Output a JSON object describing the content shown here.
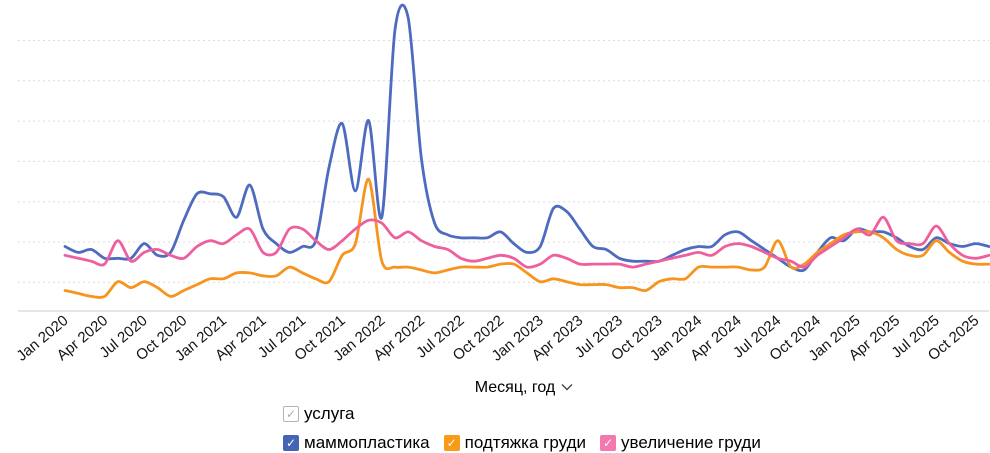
{
  "chart": {
    "x_axis_title": "Месяц, год",
    "background": "#ffffff",
    "gridline_color": "#dcdcdc",
    "axis_line_color": "#cccccc",
    "tick_label_color": "#141414"
  },
  "legend": {
    "filter": {
      "label": "услуга",
      "checked": true,
      "check_color": "#a6abb3",
      "border_color": "#b3b3b3"
    },
    "items": [
      {
        "label": "маммопластика",
        "checked": true,
        "color": "#4365b4"
      },
      {
        "label": "подтяжка груди",
        "checked": true,
        "color": "#f89b17"
      },
      {
        "label": "увеличение груди",
        "checked": true,
        "color": "#f478b0"
      }
    ]
  },
  "chart_data": {
    "type": "line",
    "x_unit": "month",
    "tick_every": 3,
    "grid": "horizontal-dashed",
    "legend_position": "bottom",
    "y_axis_labels_visible": false,
    "values_scale": "relative 0-100 (peak of 'маммопластика' in Mar 2022 = 100; no y-axis labels shown)",
    "ylim": [
      0,
      105
    ],
    "months": [
      "Jan 2020",
      "Feb 2020",
      "Mar 2020",
      "Apr 2020",
      "May 2020",
      "Jun 2020",
      "Jul 2020",
      "Aug 2020",
      "Sep 2020",
      "Oct 2020",
      "Nov 2020",
      "Dec 2020",
      "Jan 2021",
      "Feb 2021",
      "Mar 2021",
      "Apr 2021",
      "May 2021",
      "Jun 2021",
      "Jul 2021",
      "Aug 2021",
      "Sep 2021",
      "Oct 2021",
      "Nov 2021",
      "Dec 2021",
      "Jan 2022",
      "Feb 2022",
      "Mar 2022",
      "Apr 2022",
      "May 2022",
      "Jun 2022",
      "Jul 2022",
      "Aug 2022",
      "Sep 2022",
      "Oct 2022",
      "Nov 2022",
      "Dec 2022",
      "Jan 2023",
      "Feb 2023",
      "Mar 2023",
      "Apr 2023",
      "May 2023",
      "Jun 2023",
      "Jul 2023",
      "Aug 2023",
      "Sep 2023",
      "Oct 2023",
      "Nov 2023",
      "Dec 2023",
      "Jan 2024",
      "Feb 2024",
      "Mar 2024",
      "Apr 2024",
      "May 2024",
      "Jun 2024",
      "Jul 2024",
      "Aug 2024",
      "Sep 2024",
      "Oct 2024",
      "Nov 2024",
      "Dec 2024",
      "Jan 2025",
      "Feb 2025",
      "Mar 2025",
      "Apr 2025",
      "May 2025",
      "Jun 2025",
      "Jul 2025",
      "Aug 2025",
      "Sep 2025",
      "Oct 2025",
      "Nov 2025"
    ],
    "series": [
      {
        "name": "маммопластика",
        "color": "#4d6cc0",
        "values": [
          22,
          20,
          21,
          18,
          18,
          18,
          23,
          19,
          20,
          31,
          40,
          40,
          39,
          32,
          43,
          28,
          23,
          20,
          22,
          24,
          49,
          64,
          41,
          65,
          32,
          96,
          100,
          52,
          30,
          26,
          25,
          25,
          25,
          27,
          23,
          20,
          22,
          35,
          34,
          28,
          22,
          21,
          18,
          17,
          17,
          17,
          19,
          21,
          22,
          22,
          26,
          27,
          24,
          21,
          18,
          15,
          14,
          20,
          25,
          24,
          28,
          27,
          27,
          25,
          22,
          21,
          25,
          23,
          22,
          23,
          22
        ]
      },
      {
        "name": "подтяжка груди",
        "color": "#f7941e",
        "values": [
          7,
          6,
          5,
          5,
          10,
          8,
          10,
          8,
          5,
          7,
          9,
          11,
          11,
          13,
          13,
          12,
          12,
          15,
          13,
          11,
          10,
          19,
          23,
          45,
          17,
          15,
          15,
          14,
          13,
          14,
          15,
          15,
          15,
          16,
          16,
          13,
          10,
          11,
          10,
          9,
          9,
          9,
          8,
          8,
          7,
          10,
          11,
          11,
          15,
          15,
          15,
          15,
          14,
          15,
          24,
          15,
          16,
          20,
          23,
          26,
          27,
          27,
          25,
          21,
          19,
          19,
          24,
          20,
          17,
          16,
          16
        ]
      },
      {
        "name": "увеличение груди",
        "color": "#ef5f9e",
        "values": [
          19,
          18,
          17,
          16,
          24,
          17,
          20,
          21,
          19,
          18,
          22,
          24,
          23,
          26,
          28,
          20,
          20,
          28,
          28,
          24,
          21,
          24,
          28,
          31,
          30,
          25,
          27,
          24,
          22,
          21,
          18,
          17,
          18,
          19,
          18,
          15,
          16,
          19,
          18,
          16,
          16,
          16,
          16,
          15,
          16,
          17,
          18,
          19,
          20,
          19,
          22,
          23,
          22,
          20,
          18,
          17,
          15,
          19,
          22,
          25,
          28,
          26,
          32,
          24,
          23,
          23,
          29,
          23,
          19,
          18,
          19
        ]
      }
    ]
  }
}
